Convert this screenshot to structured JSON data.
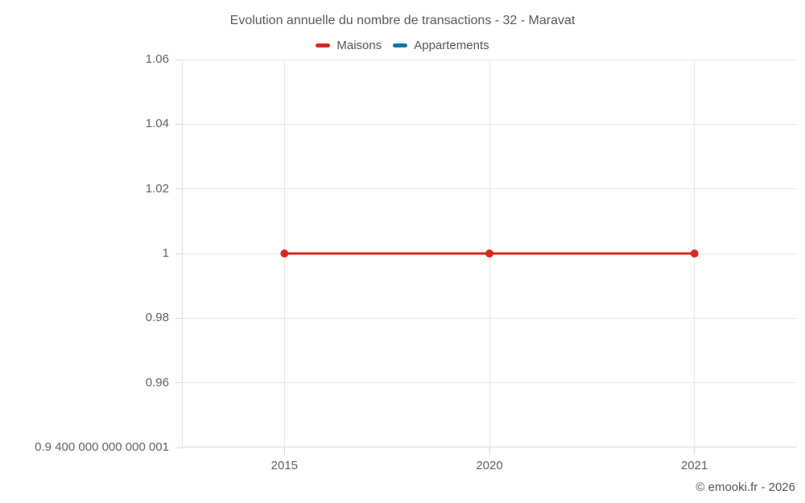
{
  "footer": {
    "copyright": "© emooki.fr - 2026"
  },
  "chart_data": {
    "type": "line",
    "title": "Evolution annuelle du nombre de transactions - 32 - Maravat",
    "xlabel": "",
    "ylabel": "",
    "categories": [
      "2015",
      "2020",
      "2021"
    ],
    "series": [
      {
        "name": "Maisons",
        "color": "#d6281f",
        "values": [
          1,
          1,
          1
        ]
      },
      {
        "name": "Appartements",
        "color": "#1072a5",
        "values": []
      }
    ],
    "y_ticks": [
      {
        "label": "1.06",
        "value": 1.06
      },
      {
        "label": "1.04",
        "value": 1.04
      },
      {
        "label": "1.02",
        "value": 1.02
      },
      {
        "label": "1",
        "value": 1
      },
      {
        "label": "0.98",
        "value": 0.98
      },
      {
        "label": "0.96",
        "value": 0.96
      },
      {
        "label": "0.9 400 000 000 000 001",
        "value": 0.94
      }
    ],
    "ylim": [
      0.94,
      1.06
    ],
    "grid": true,
    "legend_position": "top",
    "colors": {
      "grid": "#e8e8e8",
      "axis": "#d9d9d9",
      "tick_label": "#616161",
      "title": "#58595b",
      "legend_text": "#555555",
      "copyright": "#555555"
    }
  }
}
